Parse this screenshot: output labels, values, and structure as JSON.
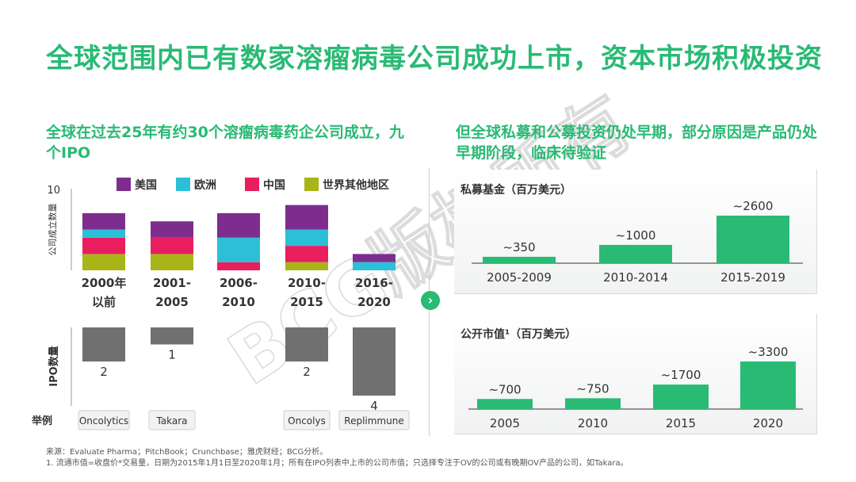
{
  "title": "全球范围内已有数家溶瘤病毒公司成功上市，资本市场积极投资",
  "left_subtitle": "全球在过去25年有约30个溶瘤病毒药企公司成立，九个IPO",
  "right_subtitle": "但全球私募和公募投资仍处早期，部分原因是产品仍处早期阶段，临床待验证",
  "chevron_symbol": "›",
  "watermark": "BCG版权所有",
  "footnotes": {
    "source": "来源：Evaluate Pharma；PitchBook；Crunchbase；雅虎财经；BCG分析。",
    "note1": "1. 流通市值=收盘价*交易量，日期为2015年1月1日至2020年1月；所有在IPO列表中上市的公司市值；只选择专注于OV的公司或有晚期OV产品的公司，如Takara。"
  },
  "colors": {
    "title_green": "#29ba74",
    "bar_green": "#29ba74",
    "usa": "#7e2d8f",
    "europe": "#2cc0d8",
    "china": "#e81e5e",
    "rest_of_world": "#a9b418",
    "ipo_gray": "#707070"
  },
  "chart_data": [
    {
      "type": "bar",
      "stacked": true,
      "ylabel": "公司成立数量",
      "yticks": [
        10
      ],
      "ylim": [
        0,
        10
      ],
      "categories": [
        "2000年以前",
        "2001-2005",
        "2006-2010",
        "2010-2015",
        "2016-2020"
      ],
      "category_lines": [
        [
          "2000年",
          "以前"
        ],
        [
          "2001-",
          "2005"
        ],
        [
          "2006-",
          "2010"
        ],
        [
          "2010-",
          "2015"
        ],
        [
          "2016-",
          "2020"
        ]
      ],
      "series": [
        {
          "name": "世界其他地区",
          "color": "#a9b418",
          "values": [
            2,
            2,
            0,
            1,
            0
          ]
        },
        {
          "name": "中国",
          "color": "#e81e5e",
          "values": [
            2,
            2,
            1,
            2,
            0
          ]
        },
        {
          "name": "欧洲",
          "color": "#2cc0d8",
          "values": [
            1,
            0,
            3,
            2,
            1
          ]
        },
        {
          "name": "美国",
          "color": "#7e2d8f",
          "values": [
            2,
            2,
            3,
            3,
            1
          ]
        }
      ],
      "legend_order": [
        "美国",
        "欧洲",
        "中国",
        "世界其他地区"
      ],
      "legend_position": "top"
    },
    {
      "type": "bar",
      "ylabel": "IPO数量",
      "categories": [
        "2000年以前",
        "2001-2005",
        "2006-2010",
        "2010-2015",
        "2016-2020"
      ],
      "values": [
        2,
        1,
        0,
        2,
        4
      ],
      "data_labels": [
        "2",
        "1",
        "",
        "2",
        "4"
      ],
      "direction": "down",
      "examples_label": "举例",
      "examples": [
        "Oncolytics",
        "Takara",
        "",
        "Oncolys",
        "Replimmune"
      ]
    },
    {
      "type": "bar",
      "title": "私募基金（百万美元）",
      "categories": [
        "2005-2009",
        "2010-2014",
        "2015-2019"
      ],
      "values": [
        350,
        1000,
        2600
      ],
      "data_labels": [
        "~350",
        "~1000",
        "~2600"
      ]
    },
    {
      "type": "bar",
      "title": "公开市值¹（百万美元）",
      "categories": [
        "2005",
        "2010",
        "2015",
        "2020"
      ],
      "values": [
        700,
        750,
        1700,
        3300
      ],
      "data_labels": [
        "~700",
        "~750",
        "~1700",
        "~3300"
      ]
    }
  ]
}
